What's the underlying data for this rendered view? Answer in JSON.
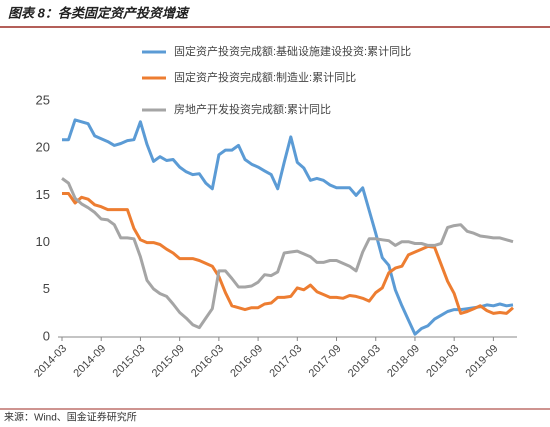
{
  "chart_data": {
    "type": "line",
    "title": "图表 8：各类固定资产投资增速",
    "source": "来源：Wind、国金证券研究所",
    "categories": [
      "2014-03",
      null,
      null,
      null,
      null,
      null,
      "2014-09",
      null,
      null,
      null,
      null,
      null,
      "2015-03",
      null,
      null,
      null,
      null,
      null,
      "2015-09",
      null,
      null,
      null,
      null,
      null,
      "2016-03",
      null,
      null,
      null,
      null,
      null,
      "2016-09",
      null,
      null,
      null,
      null,
      null,
      "2017-03",
      null,
      null,
      null,
      null,
      null,
      "2017-09",
      null,
      null,
      null,
      null,
      null,
      "2018-03",
      null,
      null,
      null,
      null,
      null,
      "2018-09",
      null,
      null,
      null,
      null,
      null,
      "2019-03",
      null,
      null,
      null,
      null,
      null,
      "2019-09",
      null,
      null,
      null
    ],
    "series": [
      {
        "name": "固定资产投资完成额:基础设施建设投资:累计同比",
        "color": "#5b9bd5",
        "values": [
          20.9,
          20.9,
          23.0,
          22.8,
          22.6,
          21.3,
          21.0,
          20.7,
          20.3,
          20.5,
          20.8,
          20.9,
          22.8,
          20.4,
          18.6,
          19.1,
          18.7,
          18.8,
          18.0,
          17.5,
          17.2,
          17.3,
          16.3,
          15.7,
          19.3,
          19.8,
          19.8,
          20.3,
          18.8,
          18.3,
          18.0,
          17.6,
          17.2,
          15.7,
          18.5,
          21.2,
          18.5,
          17.9,
          16.6,
          16.8,
          16.6,
          16.1,
          15.8,
          15.8,
          15.8,
          15.0,
          15.8,
          13.4,
          11.0,
          8.4,
          7.6,
          5.0,
          3.3,
          1.8,
          0.3,
          0.9,
          1.2,
          1.9,
          2.3,
          2.7,
          2.9,
          2.9,
          3.0,
          3.1,
          3.2,
          3.4,
          3.3,
          3.5,
          3.3,
          3.4
        ]
      },
      {
        "name": "固定资产投资完成额:制造业:累计同比",
        "color": "#ed7d31",
        "values": [
          15.2,
          15.2,
          14.2,
          14.8,
          14.6,
          14.0,
          13.8,
          13.5,
          13.5,
          13.5,
          13.5,
          11.5,
          10.3,
          10.0,
          10.0,
          9.8,
          9.3,
          8.9,
          8.3,
          8.3,
          8.3,
          8.1,
          7.8,
          7.5,
          6.4,
          4.7,
          3.3,
          3.1,
          2.9,
          3.1,
          3.1,
          3.5,
          3.6,
          4.2,
          4.2,
          4.3,
          5.2,
          5.0,
          5.5,
          4.8,
          4.5,
          4.2,
          4.2,
          4.1,
          4.4,
          4.3,
          4.1,
          3.8,
          4.7,
          5.2,
          6.8,
          7.3,
          7.5,
          8.7,
          9.0,
          9.3,
          9.6,
          9.5,
          7.7,
          5.9,
          4.6,
          2.5,
          2.7,
          3.0,
          3.3,
          2.8,
          2.5,
          2.6,
          2.5,
          3.1
        ]
      },
      {
        "name": "房地产开发投资完成额:累计同比",
        "color": "#a5a5a5",
        "values": [
          16.8,
          16.3,
          14.7,
          14.1,
          13.7,
          13.2,
          12.5,
          12.4,
          11.9,
          10.5,
          10.5,
          10.4,
          8.5,
          6.0,
          5.1,
          4.6,
          4.3,
          3.5,
          2.6,
          2.0,
          1.3,
          1.0,
          2.0,
          3.0,
          7.0,
          7.0,
          6.2,
          5.3,
          5.3,
          5.4,
          5.8,
          6.6,
          6.5,
          6.9,
          8.9,
          9.0,
          9.1,
          8.8,
          8.5,
          7.9,
          7.9,
          8.1,
          8.1,
          7.8,
          7.5,
          7.0,
          9.0,
          10.4,
          10.4,
          10.3,
          10.2,
          9.7,
          10.1,
          10.1,
          9.9,
          9.9,
          9.7,
          9.7,
          9.9,
          11.6,
          11.8,
          11.9,
          11.2,
          11.0,
          10.7,
          10.6,
          10.5,
          10.5,
          10.3,
          10.1
        ]
      }
    ],
    "ylim": [
      0,
      25
    ],
    "yticks": [
      0,
      5,
      10,
      15,
      20,
      25
    ],
    "grid": false
  }
}
